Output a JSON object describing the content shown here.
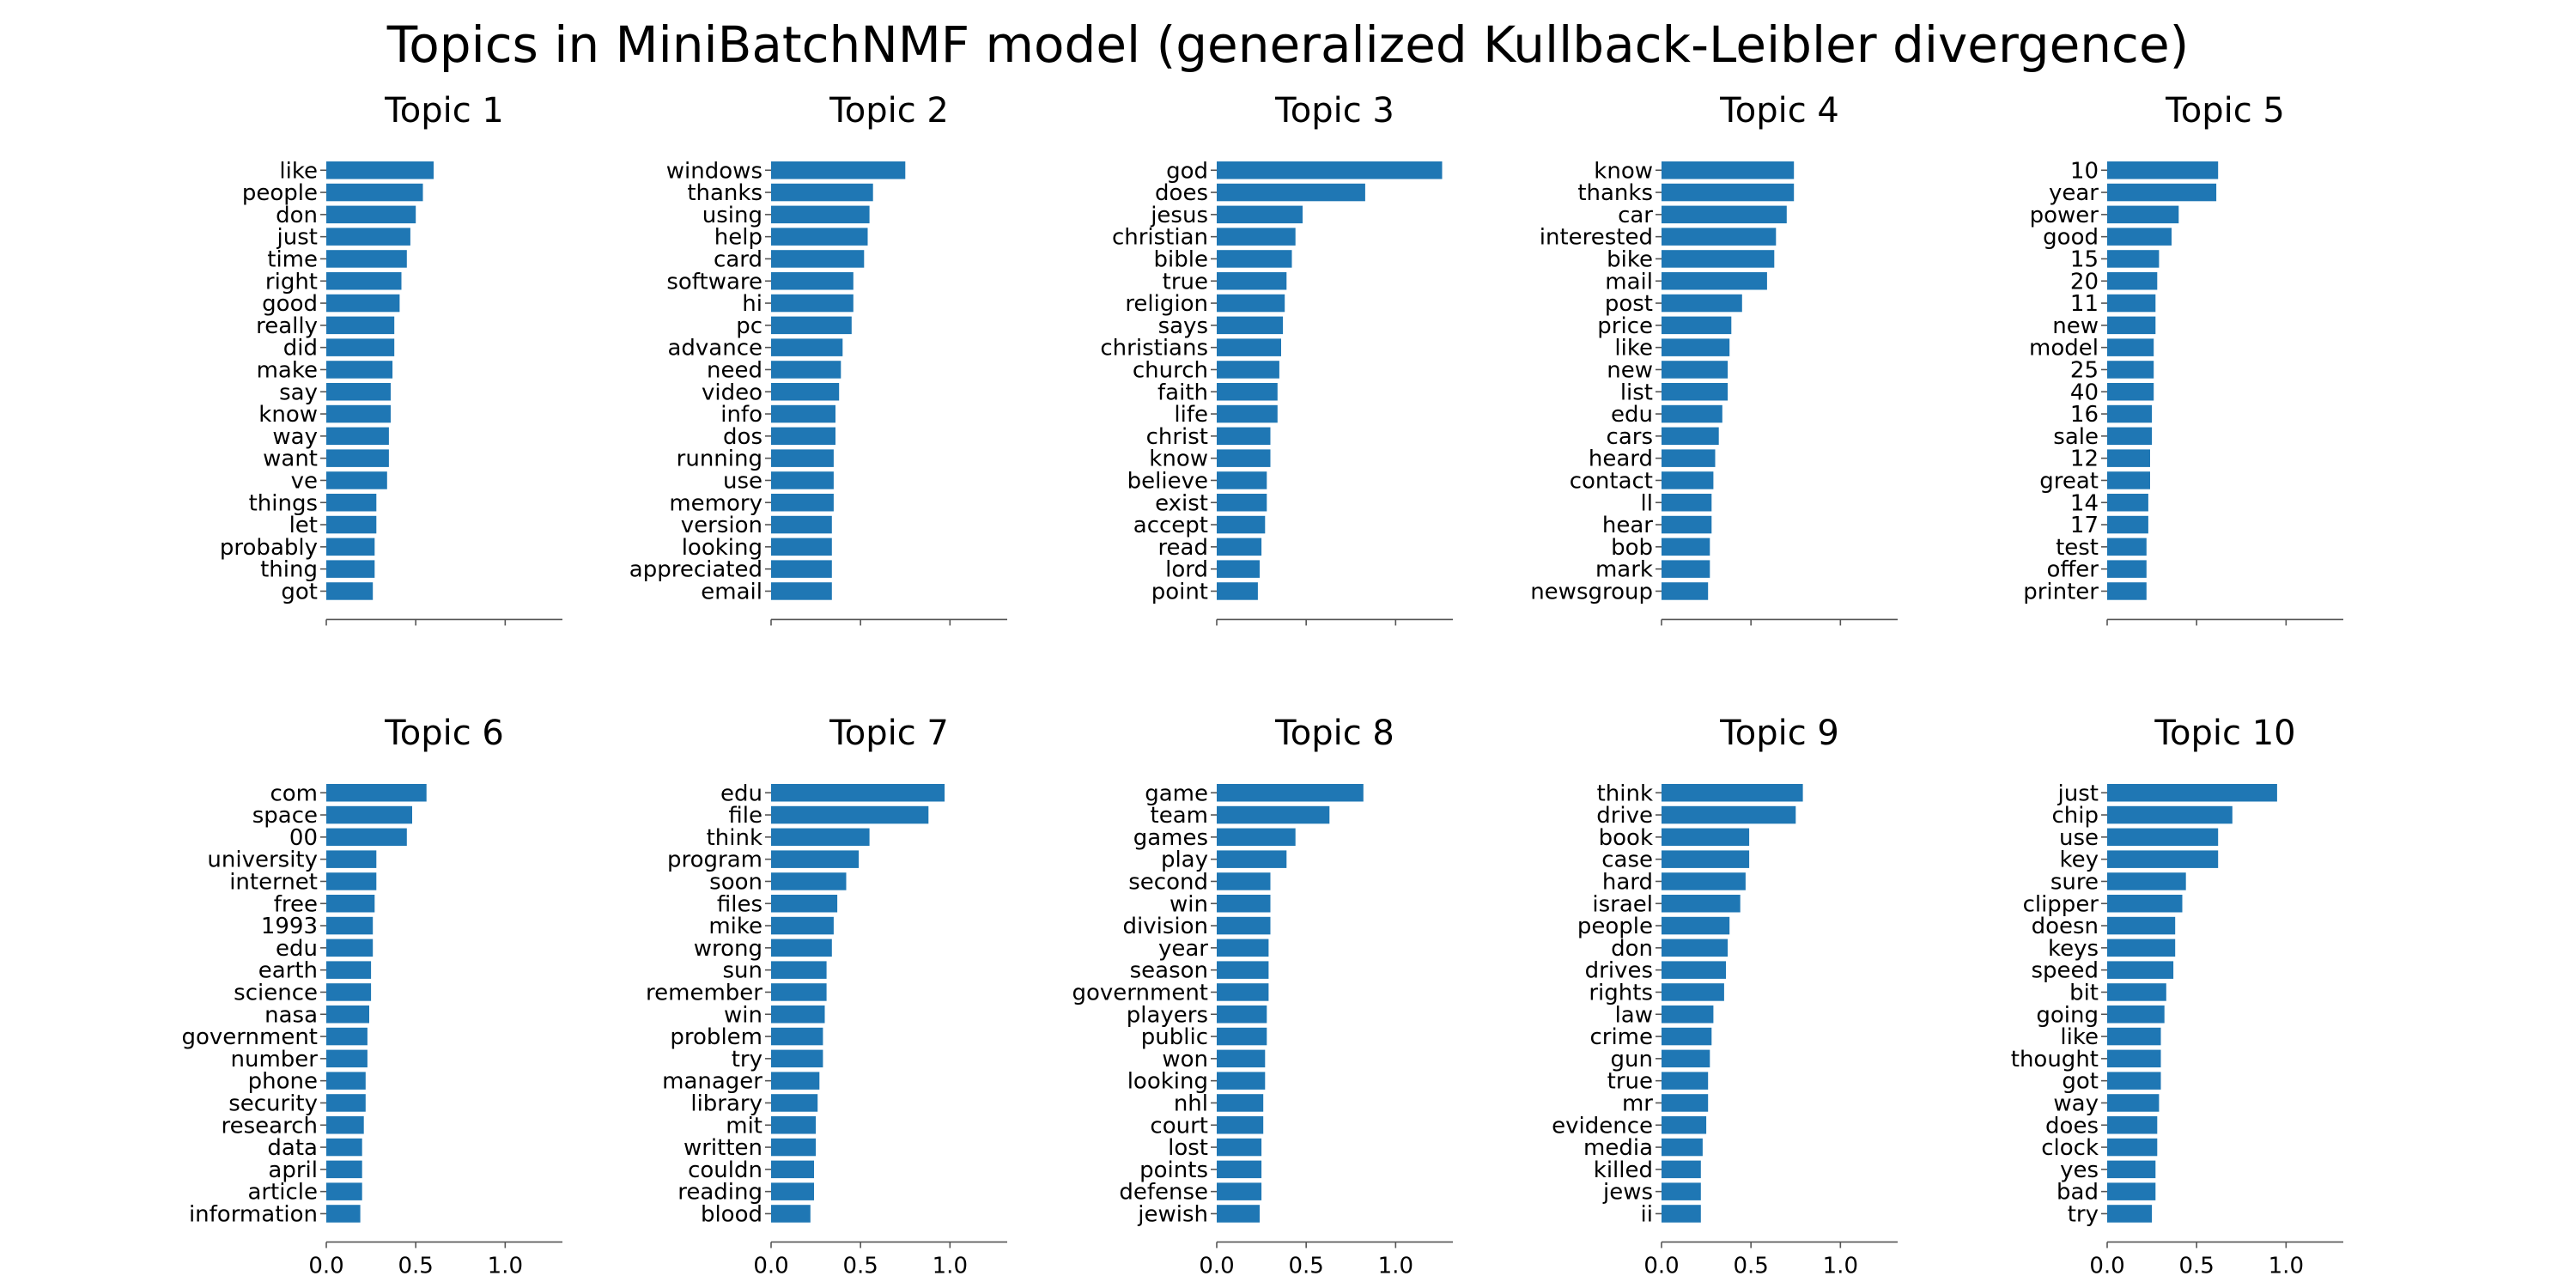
{
  "page_title": "Topics in MiniBatchNMF model (generalized Kullback-Leibler divergence)",
  "colors": {
    "bar": "#1f77b4",
    "axis": "#555555",
    "text": "#000000"
  },
  "chart_data": [
    {
      "type": "bar",
      "orientation": "horizontal",
      "title": "Topic 1",
      "xlim": [
        0,
        1.32
      ],
      "xticks": [
        "0.0",
        "0.5",
        "1.0"
      ],
      "show_tick_labels": false,
      "categories": [
        "like",
        "people",
        "don",
        "just",
        "time",
        "right",
        "good",
        "really",
        "did",
        "make",
        "say",
        "know",
        "way",
        "want",
        "ve",
        "things",
        "let",
        "probably",
        "thing",
        "got"
      ],
      "values": [
        0.6,
        0.54,
        0.5,
        0.47,
        0.45,
        0.42,
        0.41,
        0.38,
        0.38,
        0.37,
        0.36,
        0.36,
        0.35,
        0.35,
        0.34,
        0.28,
        0.28,
        0.27,
        0.27,
        0.26
      ]
    },
    {
      "type": "bar",
      "orientation": "horizontal",
      "title": "Topic 2",
      "xlim": [
        0,
        1.32
      ],
      "xticks": [
        "0.0",
        "0.5",
        "1.0"
      ],
      "show_tick_labels": false,
      "categories": [
        "windows",
        "thanks",
        "using",
        "help",
        "card",
        "software",
        "hi",
        "pc",
        "advance",
        "need",
        "video",
        "info",
        "dos",
        "running",
        "use",
        "memory",
        "version",
        "looking",
        "appreciated",
        "email"
      ],
      "values": [
        0.75,
        0.57,
        0.55,
        0.54,
        0.52,
        0.46,
        0.46,
        0.45,
        0.4,
        0.39,
        0.38,
        0.36,
        0.36,
        0.35,
        0.35,
        0.35,
        0.34,
        0.34,
        0.34,
        0.34
      ]
    },
    {
      "type": "bar",
      "orientation": "horizontal",
      "title": "Topic 3",
      "xlim": [
        0,
        1.32
      ],
      "xticks": [
        "0.0",
        "0.5",
        "1.0"
      ],
      "show_tick_labels": false,
      "categories": [
        "god",
        "does",
        "jesus",
        "christian",
        "bible",
        "true",
        "religion",
        "says",
        "christians",
        "church",
        "faith",
        "life",
        "christ",
        "know",
        "believe",
        "exist",
        "accept",
        "read",
        "lord",
        "point"
      ],
      "values": [
        1.26,
        0.83,
        0.48,
        0.44,
        0.42,
        0.39,
        0.38,
        0.37,
        0.36,
        0.35,
        0.34,
        0.34,
        0.3,
        0.3,
        0.28,
        0.28,
        0.27,
        0.25,
        0.24,
        0.23
      ]
    },
    {
      "type": "bar",
      "orientation": "horizontal",
      "title": "Topic 4",
      "xlim": [
        0,
        1.32
      ],
      "xticks": [
        "0.0",
        "0.5",
        "1.0"
      ],
      "show_tick_labels": false,
      "categories": [
        "know",
        "thanks",
        "car",
        "interested",
        "bike",
        "mail",
        "post",
        "price",
        "like",
        "new",
        "list",
        "edu",
        "cars",
        "heard",
        "contact",
        "ll",
        "hear",
        "bob",
        "mark",
        "newsgroup"
      ],
      "values": [
        0.74,
        0.74,
        0.7,
        0.64,
        0.63,
        0.59,
        0.45,
        0.39,
        0.38,
        0.37,
        0.37,
        0.34,
        0.32,
        0.3,
        0.29,
        0.28,
        0.28,
        0.27,
        0.27,
        0.26
      ]
    },
    {
      "type": "bar",
      "orientation": "horizontal",
      "title": "Topic 5",
      "xlim": [
        0,
        1.32
      ],
      "xticks": [
        "0.0",
        "0.5",
        "1.0"
      ],
      "show_tick_labels": false,
      "categories": [
        "10",
        "year",
        "power",
        "good",
        "15",
        "20",
        "11",
        "new",
        "model",
        "25",
        "40",
        "16",
        "sale",
        "12",
        "great",
        "14",
        "17",
        "test",
        "offer",
        "printer"
      ],
      "values": [
        0.62,
        0.61,
        0.4,
        0.36,
        0.29,
        0.28,
        0.27,
        0.27,
        0.26,
        0.26,
        0.26,
        0.25,
        0.25,
        0.24,
        0.24,
        0.23,
        0.23,
        0.22,
        0.22,
        0.22
      ]
    },
    {
      "type": "bar",
      "orientation": "horizontal",
      "title": "Topic 6",
      "xlim": [
        0,
        1.32
      ],
      "xticks": [
        "0.0",
        "0.5",
        "1.0"
      ],
      "show_tick_labels": true,
      "categories": [
        "com",
        "space",
        "00",
        "university",
        "internet",
        "free",
        "1993",
        "edu",
        "earth",
        "science",
        "nasa",
        "government",
        "number",
        "phone",
        "security",
        "research",
        "data",
        "april",
        "article",
        "information"
      ],
      "values": [
        0.56,
        0.48,
        0.45,
        0.28,
        0.28,
        0.27,
        0.26,
        0.26,
        0.25,
        0.25,
        0.24,
        0.23,
        0.23,
        0.22,
        0.22,
        0.21,
        0.2,
        0.2,
        0.2,
        0.19
      ]
    },
    {
      "type": "bar",
      "orientation": "horizontal",
      "title": "Topic 7",
      "xlim": [
        0,
        1.32
      ],
      "xticks": [
        "0.0",
        "0.5",
        "1.0"
      ],
      "show_tick_labels": true,
      "categories": [
        "edu",
        "file",
        "think",
        "program",
        "soon",
        "files",
        "mike",
        "wrong",
        "sun",
        "remember",
        "win",
        "problem",
        "try",
        "manager",
        "library",
        "mit",
        "written",
        "couldn",
        "reading",
        "blood"
      ],
      "values": [
        0.97,
        0.88,
        0.55,
        0.49,
        0.42,
        0.37,
        0.35,
        0.34,
        0.31,
        0.31,
        0.3,
        0.29,
        0.29,
        0.27,
        0.26,
        0.25,
        0.25,
        0.24,
        0.24,
        0.22
      ]
    },
    {
      "type": "bar",
      "orientation": "horizontal",
      "title": "Topic 8",
      "xlim": [
        0,
        1.32
      ],
      "xticks": [
        "0.0",
        "0.5",
        "1.0"
      ],
      "show_tick_labels": true,
      "categories": [
        "game",
        "team",
        "games",
        "play",
        "second",
        "win",
        "division",
        "year",
        "season",
        "government",
        "players",
        "public",
        "won",
        "looking",
        "nhl",
        "court",
        "lost",
        "points",
        "defense",
        "jewish"
      ],
      "values": [
        0.82,
        0.63,
        0.44,
        0.39,
        0.3,
        0.3,
        0.3,
        0.29,
        0.29,
        0.29,
        0.28,
        0.28,
        0.27,
        0.27,
        0.26,
        0.26,
        0.25,
        0.25,
        0.25,
        0.24
      ]
    },
    {
      "type": "bar",
      "orientation": "horizontal",
      "title": "Topic 9",
      "xlim": [
        0,
        1.32
      ],
      "xticks": [
        "0.0",
        "0.5",
        "1.0"
      ],
      "show_tick_labels": true,
      "categories": [
        "think",
        "drive",
        "book",
        "case",
        "hard",
        "israel",
        "people",
        "don",
        "drives",
        "rights",
        "law",
        "crime",
        "gun",
        "true",
        "mr",
        "evidence",
        "media",
        "killed",
        "jews",
        "ii"
      ],
      "values": [
        0.79,
        0.75,
        0.49,
        0.49,
        0.47,
        0.44,
        0.38,
        0.37,
        0.36,
        0.35,
        0.29,
        0.28,
        0.27,
        0.26,
        0.26,
        0.25,
        0.23,
        0.22,
        0.22,
        0.22
      ]
    },
    {
      "type": "bar",
      "orientation": "horizontal",
      "title": "Topic 10",
      "xlim": [
        0,
        1.32
      ],
      "xticks": [
        "0.0",
        "0.5",
        "1.0"
      ],
      "show_tick_labels": true,
      "categories": [
        "just",
        "chip",
        "use",
        "key",
        "sure",
        "clipper",
        "doesn",
        "keys",
        "speed",
        "bit",
        "going",
        "like",
        "thought",
        "got",
        "way",
        "does",
        "clock",
        "yes",
        "bad",
        "try"
      ],
      "values": [
        0.95,
        0.7,
        0.62,
        0.62,
        0.44,
        0.42,
        0.38,
        0.38,
        0.37,
        0.33,
        0.32,
        0.3,
        0.3,
        0.3,
        0.29,
        0.28,
        0.28,
        0.27,
        0.27,
        0.25
      ]
    }
  ]
}
